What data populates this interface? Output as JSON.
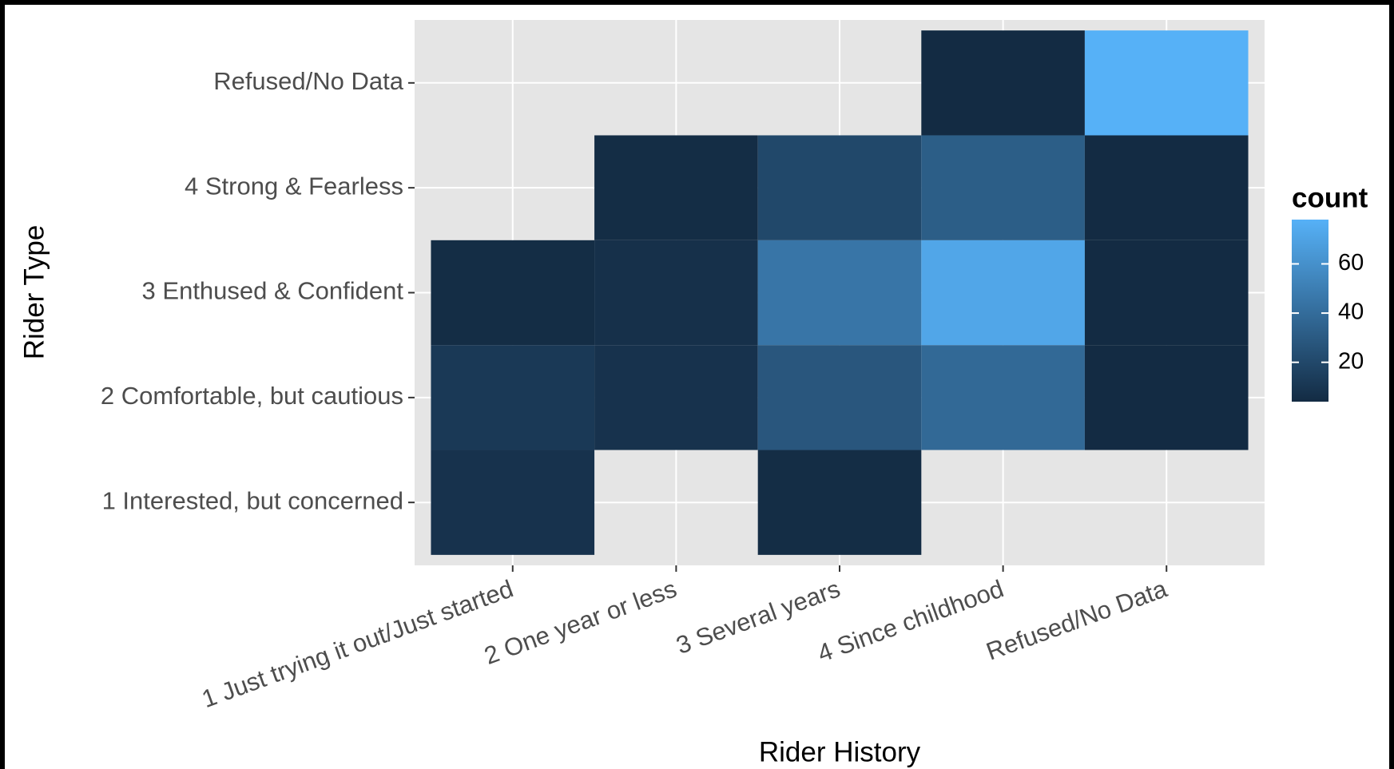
{
  "chart_data": {
    "type": "heatmap",
    "x_label": "Rider History",
    "y_label": "Rider Type",
    "x_categories": [
      "1 Just trying it out/Just started",
      "2 One year or less",
      "3 Several years",
      "4 Since childhood",
      "Refused/No Data"
    ],
    "y_categories": [
      "1 Interested, but concerned",
      "2 Comfortable, but cautious",
      "3 Enthused & Confident",
      "4 Strong & Fearless",
      "Refused/No Data"
    ],
    "values": [
      [
        8,
        null,
        5,
        null,
        null
      ],
      [
        12,
        8,
        28,
        38,
        4
      ],
      [
        5,
        7,
        45,
        72,
        4
      ],
      [
        null,
        5,
        20,
        32,
        4
      ],
      [
        null,
        null,
        null,
        4,
        78
      ]
    ],
    "colorbar": {
      "title": "count",
      "lim": [
        4,
        78
      ],
      "ticks": [
        20,
        40,
        60
      ],
      "low": "#132B43",
      "high": "#56B1F7"
    },
    "grid": true
  }
}
